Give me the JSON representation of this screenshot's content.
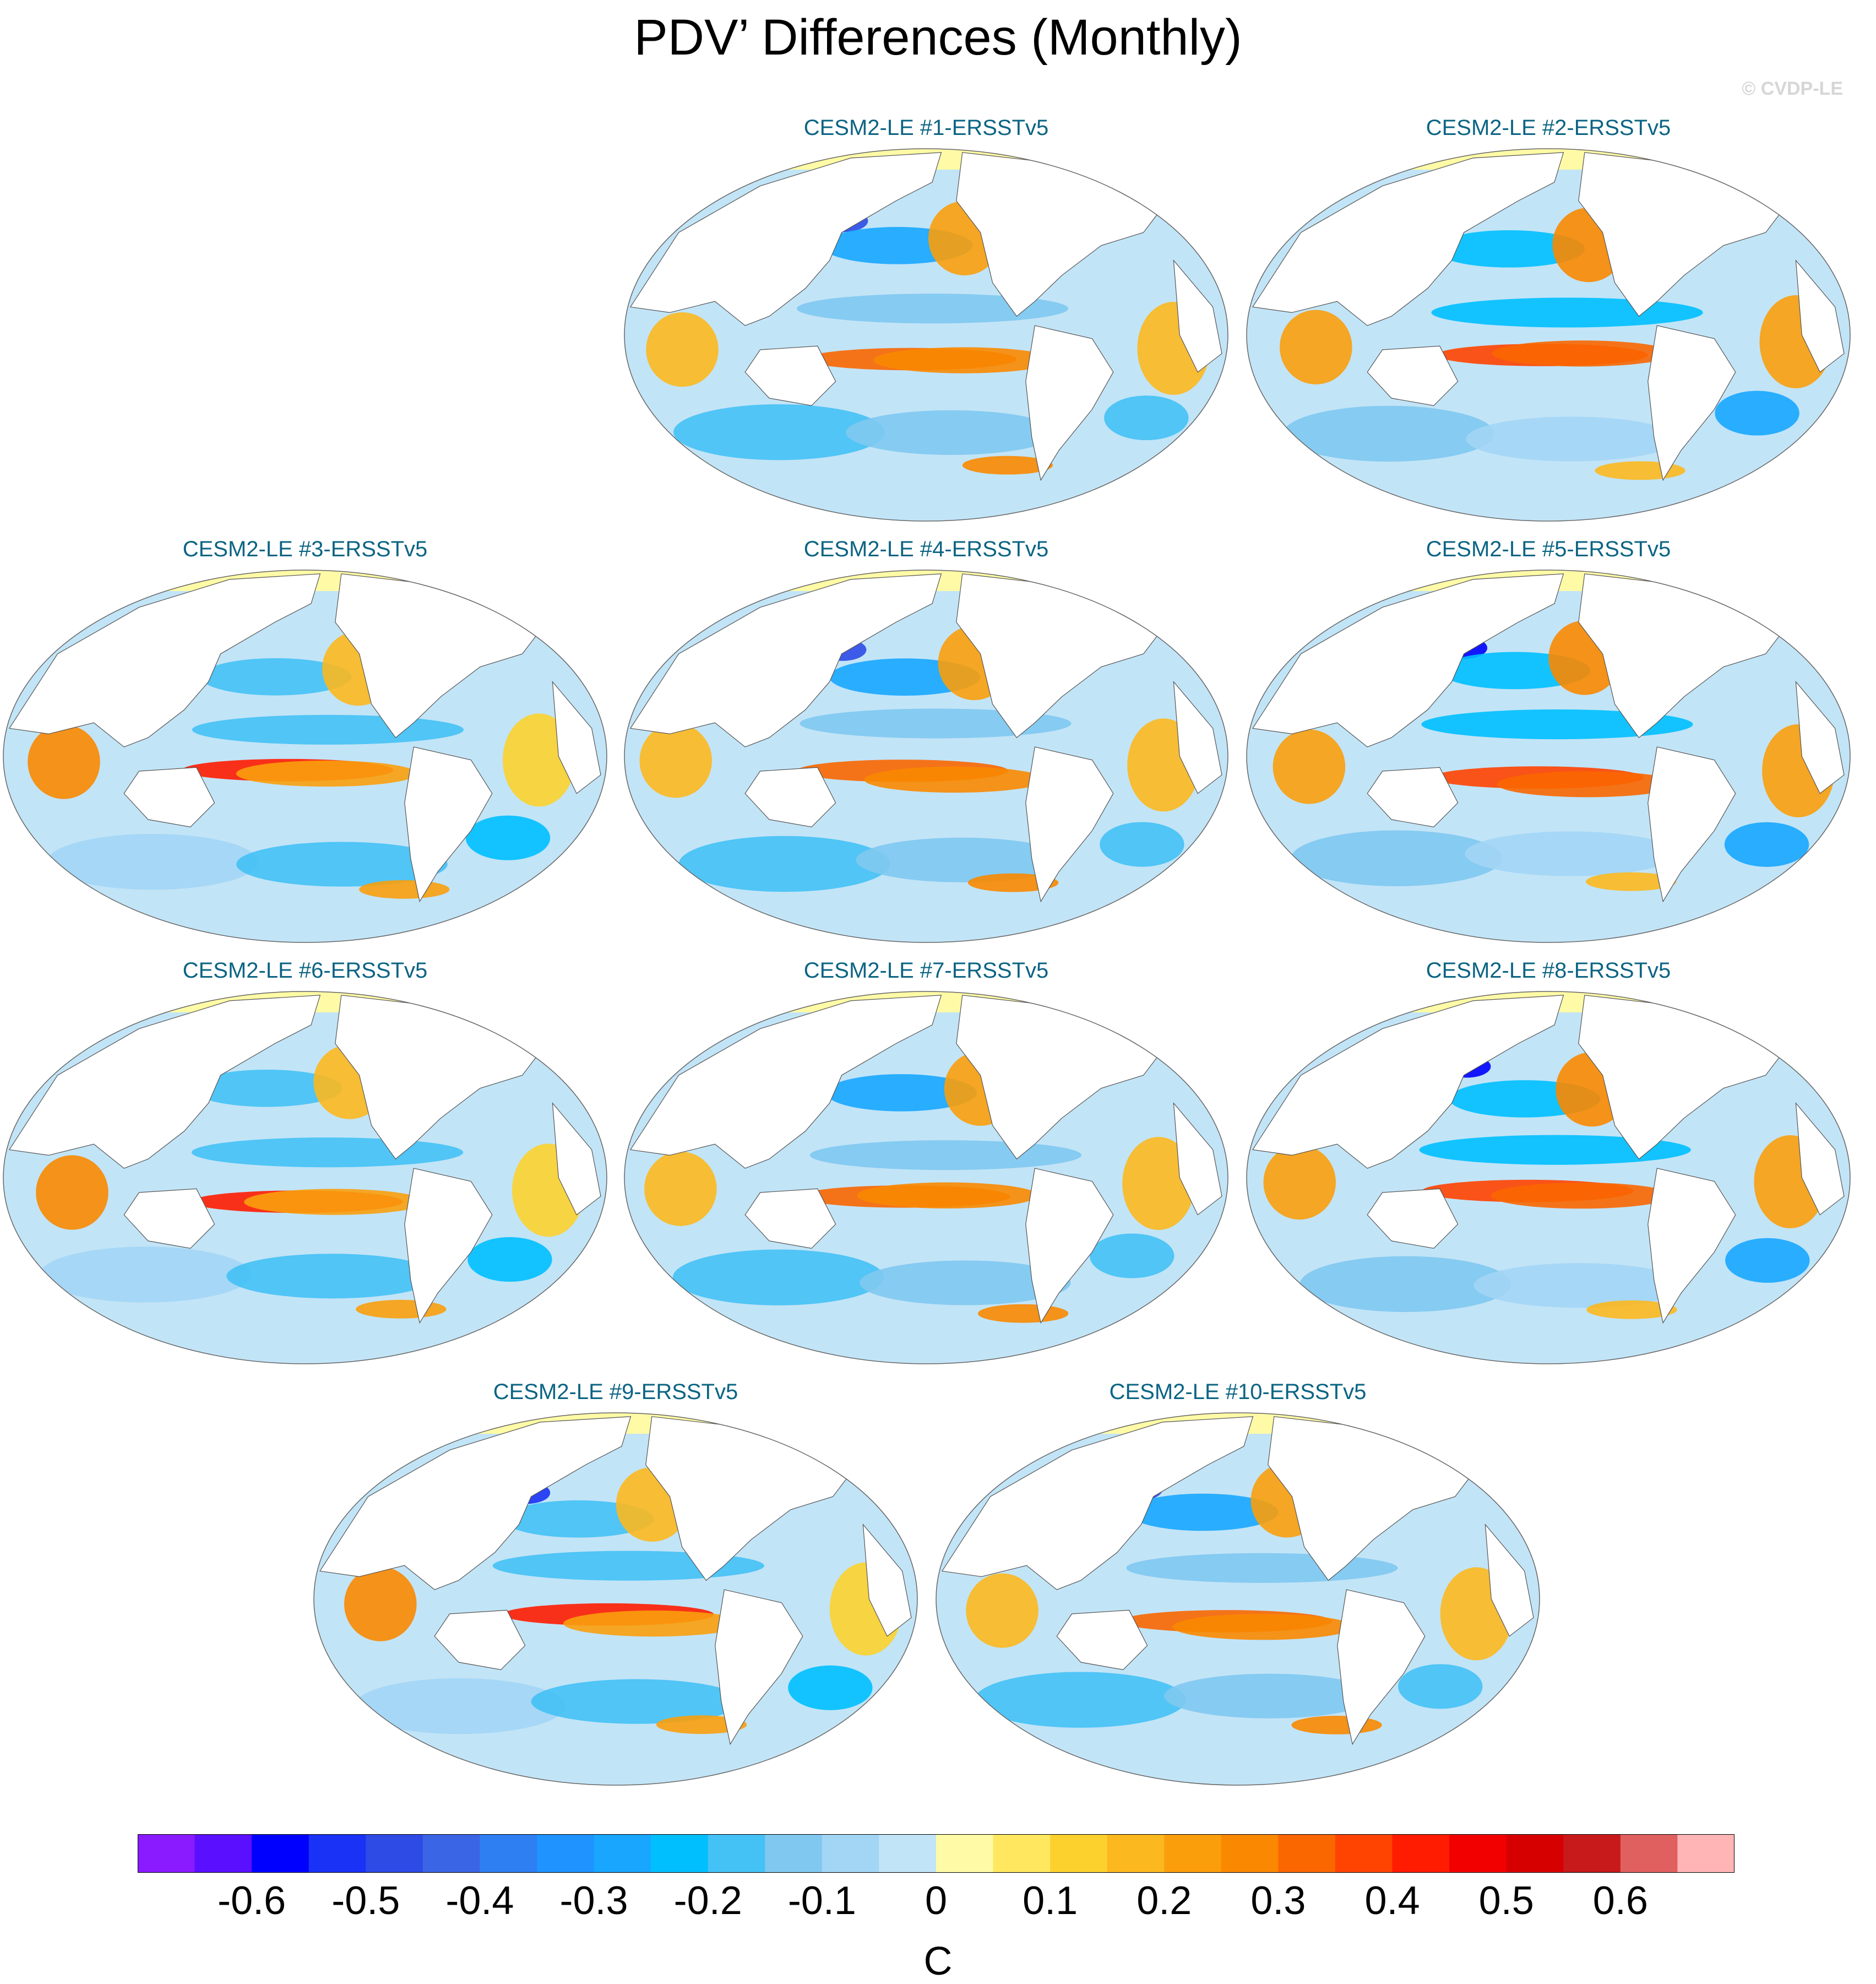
{
  "title": "PDV’ Differences (Monthly)",
  "watermark": "© CVDP-LE",
  "chart_data": {
    "type": "heatmap",
    "description_kind": "multi-panel global SST difference maps",
    "unit": "C",
    "panels": [
      {
        "title": "CESM2-LE #1-ERSSTv5"
      },
      {
        "title": "CESM2-LE #2-ERSSTv5"
      },
      {
        "title": "CESM2-LE #3-ERSSTv5"
      },
      {
        "title": "CESM2-LE #4-ERSSTv5"
      },
      {
        "title": "CESM2-LE #5-ERSSTv5"
      },
      {
        "title": "CESM2-LE #6-ERSSTv5"
      },
      {
        "title": "CESM2-LE #7-ERSSTv5"
      },
      {
        "title": "CESM2-LE #8-ERSSTv5"
      },
      {
        "title": "CESM2-LE #9-ERSSTv5"
      },
      {
        "title": "CESM2-LE #10-ERSSTv5"
      }
    ],
    "colorbar": {
      "colors": [
        "#8a1aff",
        "#5a10ff",
        "#0000ff",
        "#1a32f5",
        "#2e4be6",
        "#3a66e6",
        "#2e7ff2",
        "#1f93ff",
        "#18a6ff",
        "#00bfff",
        "#44c1f5",
        "#80c8f0",
        "#a3d5f5",
        "#c2e4f7",
        "#fffaa6",
        "#ffe860",
        "#fcd12e",
        "#fcb81f",
        "#fa9e0c",
        "#fa8800",
        "#fa6600",
        "#ff4300",
        "#ff1c00",
        "#f20000",
        "#d60000",
        "#c81a1a",
        "#e06060",
        "#ffb5b5"
      ],
      "tick_labels": [
        "-0.6",
        "-0.5",
        "-0.4",
        "-0.3",
        "-0.2",
        "-0.1",
        "0",
        "0.1",
        "0.2",
        "0.3",
        "0.4",
        "0.5",
        "0.6"
      ]
    }
  }
}
